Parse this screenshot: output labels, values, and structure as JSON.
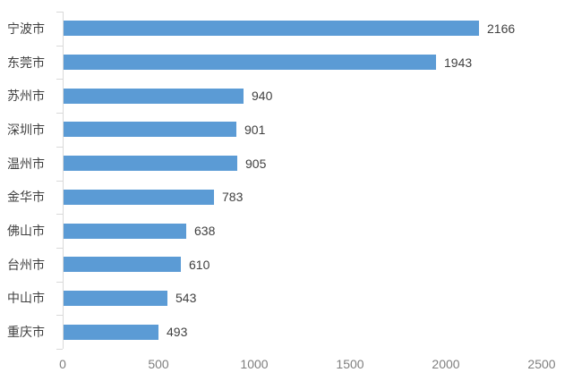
{
  "chart_data": {
    "type": "bar",
    "orientation": "horizontal",
    "title": "",
    "xlabel": "",
    "ylabel": "",
    "categories": [
      "宁波市",
      "东莞市",
      "苏州市",
      "深圳市",
      "温州市",
      "金华市",
      "佛山市",
      "台州市",
      "中山市",
      "重庆市"
    ],
    "values": [
      2166,
      1943,
      940,
      901,
      905,
      783,
      638,
      610,
      543,
      493
    ],
    "data_labels": [
      "2166",
      "1943",
      "940",
      "901",
      "905",
      "783",
      "638",
      "610",
      "543",
      "493"
    ],
    "xlim": [
      0,
      2500
    ],
    "x_ticks": [
      0,
      500,
      1000,
      1500,
      2000,
      2500
    ],
    "x_tick_labels": [
      "0",
      "500",
      "1000",
      "1500",
      "2000",
      "2500"
    ],
    "grid": false,
    "legend": false,
    "colors": {
      "bar": "#5B9BD5",
      "category_label": "#404040",
      "value_label": "#404040",
      "axis_tick_label": "#7F7F7F",
      "axis_line": "#D9D9D9",
      "background": "#FFFFFF"
    }
  }
}
